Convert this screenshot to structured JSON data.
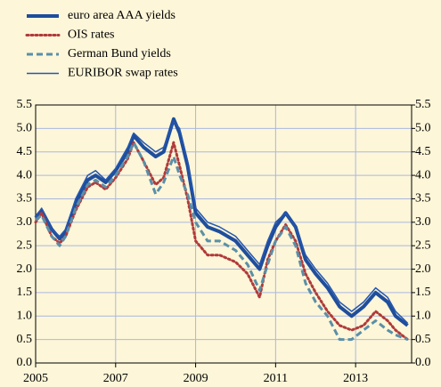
{
  "chart_data": {
    "type": "line",
    "x": [
      2005.0,
      2005.15,
      2005.4,
      2005.6,
      2005.75,
      2006.0,
      2006.3,
      2006.5,
      2006.75,
      2007.0,
      2007.3,
      2007.45,
      2007.7,
      2008.0,
      2008.2,
      2008.45,
      2008.6,
      2008.8,
      2009.0,
      2009.3,
      2009.6,
      2010.0,
      2010.3,
      2010.6,
      2010.8,
      2011.0,
      2011.25,
      2011.5,
      2011.75,
      2012.0,
      2012.3,
      2012.6,
      2012.9,
      2013.2,
      2013.5,
      2013.8,
      2014.0,
      2014.3
    ],
    "series": [
      {
        "name": "euro area AAA yields",
        "color": "#1f4e9c",
        "style": "solid",
        "width": 4,
        "values": [
          3.1,
          3.25,
          2.85,
          2.65,
          2.8,
          3.4,
          3.9,
          4.0,
          3.85,
          4.1,
          4.5,
          4.85,
          4.6,
          4.4,
          4.5,
          5.2,
          4.9,
          4.2,
          3.2,
          2.9,
          2.8,
          2.6,
          2.3,
          2.0,
          2.5,
          2.9,
          3.2,
          2.9,
          2.2,
          1.9,
          1.6,
          1.2,
          1.0,
          1.2,
          1.5,
          1.3,
          1.0,
          0.8
        ]
      },
      {
        "name": "OIS rates",
        "color": "#b03a3a",
        "style": "dotted",
        "width": 3,
        "values": [
          3.0,
          3.2,
          2.7,
          2.55,
          2.7,
          3.25,
          3.75,
          3.85,
          3.7,
          3.95,
          4.35,
          4.7,
          4.3,
          3.8,
          3.95,
          4.7,
          4.2,
          3.5,
          2.6,
          2.3,
          2.3,
          2.15,
          1.9,
          1.4,
          2.2,
          2.6,
          2.95,
          2.6,
          1.9,
          1.5,
          1.1,
          0.8,
          0.7,
          0.8,
          1.1,
          0.9,
          0.7,
          0.5
        ]
      },
      {
        "name": "German Bund yields",
        "color": "#5a8fa8",
        "style": "dashed",
        "width": 3,
        "values": [
          3.05,
          3.15,
          2.7,
          2.5,
          2.7,
          3.3,
          3.8,
          3.9,
          3.75,
          4.0,
          4.4,
          4.7,
          4.3,
          3.6,
          3.85,
          4.4,
          4.0,
          3.6,
          3.0,
          2.6,
          2.6,
          2.4,
          2.1,
          1.55,
          2.1,
          2.6,
          2.9,
          2.5,
          1.7,
          1.3,
          1.0,
          0.5,
          0.5,
          0.7,
          0.9,
          0.7,
          0.6,
          0.5
        ]
      },
      {
        "name": "EURIBOR swap rates",
        "color": "#2456b0",
        "style": "solid",
        "width": 1.5,
        "values": [
          3.1,
          3.3,
          2.85,
          2.7,
          2.85,
          3.5,
          4.0,
          4.1,
          3.9,
          4.15,
          4.6,
          4.9,
          4.7,
          4.5,
          4.6,
          5.15,
          5.0,
          4.3,
          3.3,
          3.0,
          2.9,
          2.7,
          2.4,
          2.1,
          2.6,
          3.0,
          3.2,
          2.9,
          2.3,
          2.0,
          1.7,
          1.3,
          1.1,
          1.3,
          1.6,
          1.4,
          1.1,
          0.85
        ]
      }
    ],
    "xlim": [
      2005,
      2014.4
    ],
    "xticks": [
      2005,
      2007,
      2009,
      2011,
      2013
    ],
    "ylim": [
      0,
      5.5
    ],
    "yticks": [
      {
        "value": 0,
        "label": "0.0"
      },
      {
        "value": 0.5,
        "label": "0.5"
      },
      {
        "value": 1,
        "label": "1.0"
      },
      {
        "value": 1.5,
        "label": "1.5"
      },
      {
        "value": 2,
        "label": "2.0"
      },
      {
        "value": 2.5,
        "label": "2.5"
      },
      {
        "value": 3,
        "label": "3.0"
      },
      {
        "value": 3.5,
        "label": "3.5"
      },
      {
        "value": 4,
        "label": "4.0"
      },
      {
        "value": 4.5,
        "label": "4.5"
      },
      {
        "value": 5,
        "label": "5.0"
      },
      {
        "value": 5.5,
        "label": "5.5"
      }
    ],
    "y2lim": [
      0,
      5.5
    ],
    "y2ticks": [
      {
        "value": 0,
        "label": "0.0"
      },
      {
        "value": 0.5,
        "label": "0.5"
      },
      {
        "value": 1,
        "label": "1.0"
      },
      {
        "value": 1.5,
        "label": "1.5"
      },
      {
        "value": 2,
        "label": "2.0"
      },
      {
        "value": 2.5,
        "label": "2.5"
      },
      {
        "value": 3,
        "label": "3.0"
      },
      {
        "value": 3.5,
        "label": "3.5"
      },
      {
        "value": 4,
        "label": "4.0"
      },
      {
        "value": 4.5,
        "label": "4.5"
      },
      {
        "value": 5,
        "label": "5.0"
      },
      {
        "value": 5.5,
        "label": "5.5"
      }
    ],
    "grid": true,
    "legend": "top-left"
  }
}
